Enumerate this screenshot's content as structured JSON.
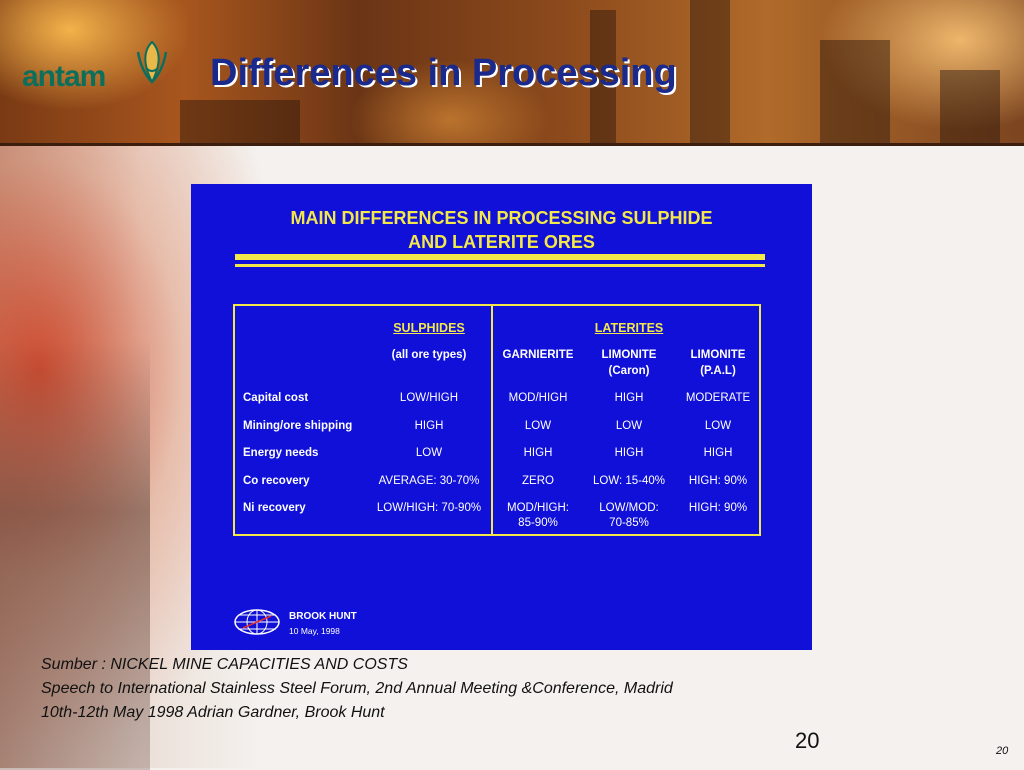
{
  "header": {
    "logo_text": "antam",
    "title": "Differences in Processing"
  },
  "slide_image": {
    "title_line1": "MAIN DIFFERENCES IN PROCESSING SULPHIDE",
    "title_line2": "AND LATERITE ORES",
    "groups": {
      "sulphides": "SULPHIDES",
      "laterites": "LATERITES"
    },
    "columns": [
      [
        "(all ore types)"
      ],
      [
        "GARNIERITE"
      ],
      [
        "LIMONITE",
        "(Caron)"
      ],
      [
        "LIMONITE",
        "(P.A.L)"
      ]
    ],
    "rows": [
      {
        "label": "Capital cost",
        "cells": [
          [
            "LOW/HIGH"
          ],
          [
            "MOD/HIGH"
          ],
          [
            "HIGH"
          ],
          [
            "MODERATE"
          ]
        ]
      },
      {
        "label": "Mining/ore shipping",
        "cells": [
          [
            "HIGH"
          ],
          [
            "LOW"
          ],
          [
            "LOW"
          ],
          [
            "LOW"
          ]
        ]
      },
      {
        "label": "Energy needs",
        "cells": [
          [
            "LOW"
          ],
          [
            "HIGH"
          ],
          [
            "HIGH"
          ],
          [
            "HIGH"
          ]
        ]
      },
      {
        "label": "Co recovery",
        "cells": [
          [
            "AVERAGE: 30-70%"
          ],
          [
            "ZERO"
          ],
          [
            "LOW: 15-40%"
          ],
          [
            "HIGH: 90%"
          ]
        ]
      },
      {
        "label": "Ni recovery",
        "cells": [
          [
            "LOW/HIGH: 70-90%"
          ],
          [
            "MOD/HIGH:",
            "85-90%"
          ],
          [
            "LOW/MOD:",
            "70-85%"
          ],
          [
            "HIGH: 90%"
          ]
        ]
      }
    ],
    "brook_name": "BROOK HUNT",
    "brook_date": "10 May, 1998"
  },
  "source": {
    "line1": "Sumber : NICKEL MINE CAPACITIES AND COSTS",
    "line2": "Speech to International Stainless Steel Forum, 2nd Annual Meeting &Conference, Madrid",
    "line3": "10th-12th May 1998  Adrian Gardner, Brook Hunt"
  },
  "page_number": "20",
  "page_number_small": "20",
  "colors": {
    "title": "#1a2a8c",
    "slide_blue": "#1010d8",
    "slide_yellow": "#f2e84a",
    "logo_green": "#0e6e5c"
  }
}
